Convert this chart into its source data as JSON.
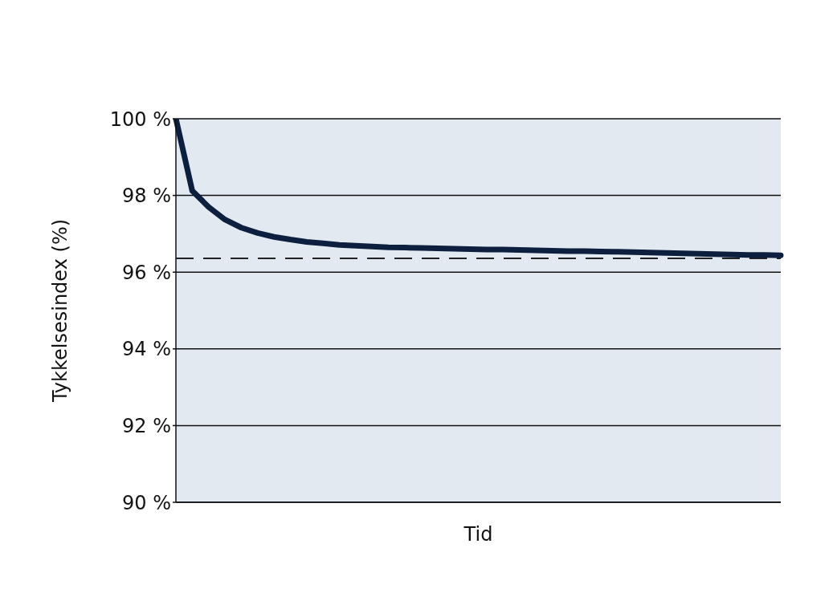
{
  "chart_data": {
    "type": "line",
    "xlabel": "Tid",
    "ylabel": "Tykkelsesindex (%)",
    "categories": [
      null,
      null,
      null,
      null,
      null,
      null,
      null,
      null,
      null,
      null,
      null,
      null,
      null,
      null,
      null,
      null,
      null,
      null,
      null,
      null,
      null,
      null,
      null,
      null,
      null,
      null,
      null,
      null,
      null,
      null,
      null,
      null,
      null,
      null,
      null,
      null,
      null,
      null
    ],
    "series": [
      {
        "color": "#0d1f3f",
        "values": [
          100,
          98.12,
          97.7,
          97.37,
          97.16,
          97.02,
          96.92,
          96.85,
          96.79,
          96.75,
          96.71,
          96.69,
          96.67,
          96.65,
          96.64,
          96.63,
          96.62,
          96.61,
          96.6,
          96.59,
          96.59,
          96.58,
          96.57,
          96.56,
          96.55,
          96.55,
          96.54,
          96.53,
          96.52,
          96.51,
          96.5,
          96.49,
          96.48,
          96.47,
          96.46,
          96.45,
          96.45,
          96.44
        ]
      }
    ],
    "ylim": [
      90,
      100
    ],
    "yticks": [
      {
        "value": 90,
        "label": "90 %"
      },
      {
        "value": 92,
        "label": "92 %"
      },
      {
        "value": 94,
        "label": "94 %"
      },
      {
        "value": 96,
        "label": "96 %"
      },
      {
        "value": 98,
        "label": "98 %"
      },
      {
        "value": 100,
        "label": "100 %"
      }
    ],
    "ref_lines": [
      {
        "axis": "y",
        "value": 96.36,
        "color": "#222222",
        "line_style": "dashed"
      }
    ],
    "grid": "y",
    "legend": false,
    "marker": "none",
    "line_style": "solid"
  }
}
